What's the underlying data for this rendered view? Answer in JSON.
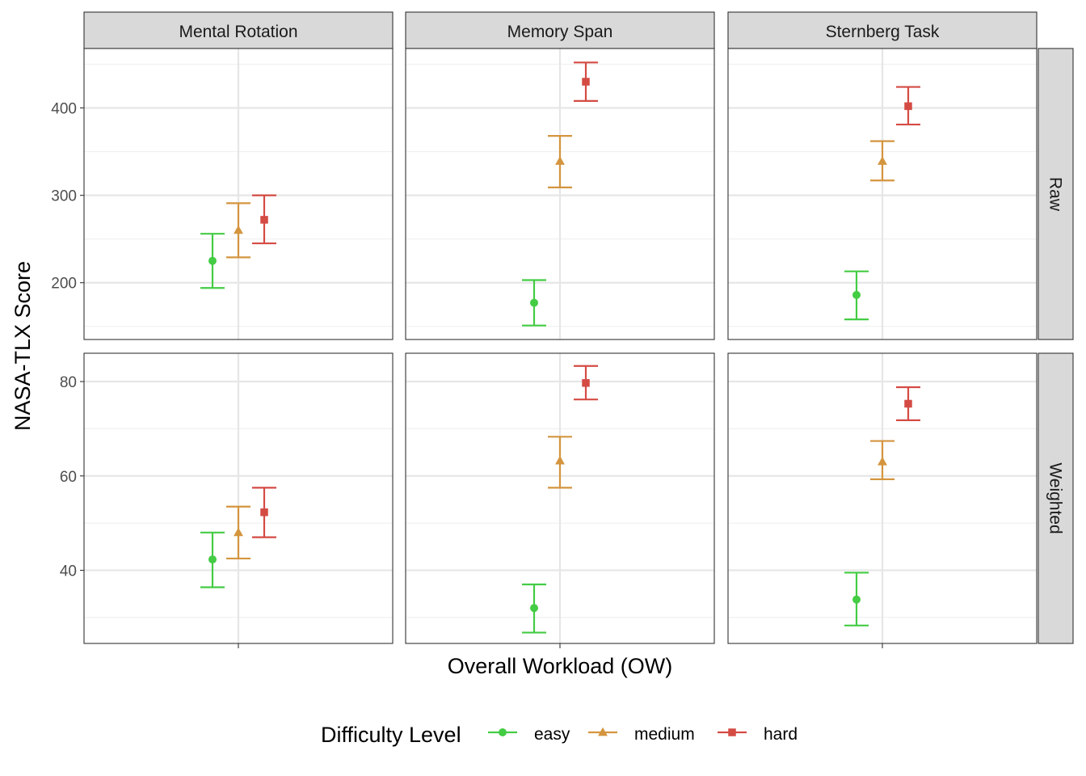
{
  "chart_data": {
    "type": "scatter",
    "xlabel": "Overall Workload (OW)",
    "ylabel": "NASA-TLX Score",
    "x_category": "",
    "columns": [
      "Mental Rotation",
      "Memory Span",
      "Sternberg Task"
    ],
    "rows": [
      "Raw",
      "Weighted"
    ],
    "grid": true,
    "legend": {
      "title": "Difficulty Level",
      "position": "bottom",
      "entries": [
        {
          "name": "easy",
          "color": "#44cc44",
          "shape": "circle"
        },
        {
          "name": "medium",
          "color": "#d4953f",
          "shape": "triangle"
        },
        {
          "name": "hard",
          "color": "#d44b44",
          "shape": "square"
        }
      ]
    },
    "ylim": {
      "Raw": [
        135,
        468
      ],
      "Weighted": [
        24.5,
        86
      ]
    },
    "yticks": {
      "Raw": [
        200,
        300,
        400
      ],
      "Weighted": [
        40,
        60,
        80
      ]
    },
    "series": [
      {
        "name": "easy",
        "points": [
          {
            "row": "Raw",
            "col": "Mental Rotation",
            "value": 225,
            "low": 194,
            "high": 256
          },
          {
            "row": "Raw",
            "col": "Memory Span",
            "value": 177,
            "low": 151,
            "high": 203
          },
          {
            "row": "Raw",
            "col": "Sternberg Task",
            "value": 186,
            "low": 158,
            "high": 213
          },
          {
            "row": "Weighted",
            "col": "Mental Rotation",
            "value": 42.3,
            "low": 36.4,
            "high": 48
          },
          {
            "row": "Weighted",
            "col": "Memory Span",
            "value": 32,
            "low": 26.8,
            "high": 37
          },
          {
            "row": "Weighted",
            "col": "Sternberg Task",
            "value": 33.8,
            "low": 28.3,
            "high": 39.5
          }
        ]
      },
      {
        "name": "medium",
        "points": [
          {
            "row": "Raw",
            "col": "Mental Rotation",
            "value": 260,
            "low": 229,
            "high": 291
          },
          {
            "row": "Raw",
            "col": "Memory Span",
            "value": 339,
            "low": 309,
            "high": 368
          },
          {
            "row": "Raw",
            "col": "Sternberg Task",
            "value": 339,
            "low": 317,
            "high": 362
          },
          {
            "row": "Weighted",
            "col": "Mental Rotation",
            "value": 48,
            "low": 42.5,
            "high": 53.5
          },
          {
            "row": "Weighted",
            "col": "Memory Span",
            "value": 63.2,
            "low": 57.5,
            "high": 68.3
          },
          {
            "row": "Weighted",
            "col": "Sternberg Task",
            "value": 63,
            "low": 59.3,
            "high": 67.4
          }
        ]
      },
      {
        "name": "hard",
        "points": [
          {
            "row": "Raw",
            "col": "Mental Rotation",
            "value": 272,
            "low": 245,
            "high": 300
          },
          {
            "row": "Raw",
            "col": "Memory Span",
            "value": 430,
            "low": 408,
            "high": 452
          },
          {
            "row": "Raw",
            "col": "Sternberg Task",
            "value": 402,
            "low": 381,
            "high": 424
          },
          {
            "row": "Weighted",
            "col": "Mental Rotation",
            "value": 52.3,
            "low": 47,
            "high": 57.5
          },
          {
            "row": "Weighted",
            "col": "Memory Span",
            "value": 79.7,
            "low": 76.2,
            "high": 83.3
          },
          {
            "row": "Weighted",
            "col": "Sternberg Task",
            "value": 75.3,
            "low": 71.8,
            "high": 78.8
          }
        ]
      }
    ]
  }
}
